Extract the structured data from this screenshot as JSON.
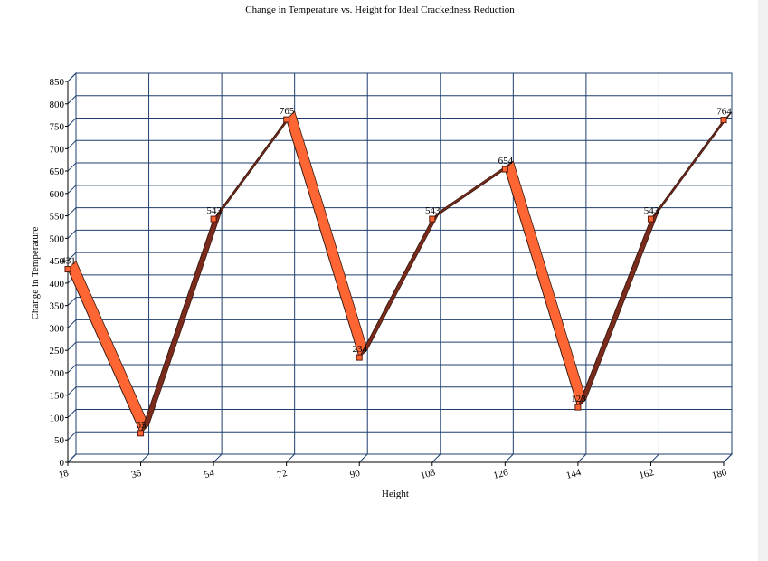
{
  "chart_data": {
    "type": "line",
    "title": "Change in Temperature vs. Height for Ideal Crackedness Reduction",
    "x_label": "Height",
    "y_label": "Change in Temperature",
    "x": [
      18,
      36,
      54,
      72,
      90,
      108,
      126,
      144,
      162,
      180
    ],
    "values": [
      431,
      65,
      543,
      765,
      234,
      543,
      654,
      123,
      543,
      764
    ],
    "color": "#ff6633",
    "shade_color": "#7b2b1b",
    "xlim": [
      18,
      180
    ],
    "xticks": [
      18,
      36,
      54,
      72,
      90,
      108,
      126,
      144,
      162,
      180
    ],
    "ylim": [
      0,
      850
    ],
    "yticks": [
      0,
      50,
      100,
      150,
      200,
      250,
      300,
      350,
      400,
      450,
      500,
      550,
      600,
      650,
      700,
      750,
      800,
      850
    ],
    "grid": true
  }
}
